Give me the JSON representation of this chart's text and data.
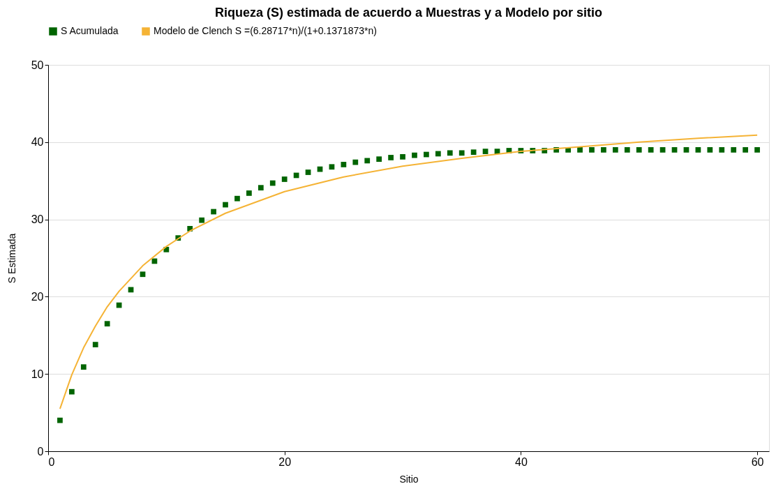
{
  "chart_data": {
    "type": "scatter",
    "title": "Riqueza (S) estimada de acuerdo a Muestras y a Modelo por sitio",
    "xlabel": "Sitio",
    "ylabel": "S Estimada",
    "xlim": [
      0,
      61
    ],
    "xticks": [
      0,
      20,
      40,
      60
    ],
    "ylim": [
      0,
      50
    ],
    "yticks": [
      0,
      10,
      20,
      30,
      40,
      50
    ],
    "grid": "y",
    "legend": "top left",
    "series": [
      {
        "name": "S Acumulada",
        "marker": "square",
        "color": "#006400",
        "x": [
          1,
          2,
          3,
          4,
          5,
          6,
          7,
          8,
          9,
          10,
          11,
          12,
          13,
          14,
          15,
          16,
          17,
          18,
          19,
          20,
          21,
          22,
          23,
          24,
          25,
          26,
          27,
          28,
          29,
          30,
          31,
          32,
          33,
          34,
          35,
          36,
          37,
          38,
          39,
          40,
          41,
          42,
          43,
          44,
          45,
          46,
          47,
          48,
          49,
          50,
          51,
          52,
          53,
          54,
          55,
          56,
          57,
          58,
          59,
          60
        ],
        "values": [
          4,
          7.7,
          10.9,
          13.8,
          16.5,
          18.9,
          20.9,
          22.9,
          24.6,
          26.1,
          27.6,
          28.8,
          29.9,
          31,
          31.9,
          32.7,
          33.4,
          34.1,
          34.7,
          35.2,
          35.7,
          36.1,
          36.5,
          36.8,
          37.1,
          37.4,
          37.6,
          37.8,
          38,
          38.1,
          38.3,
          38.4,
          38.5,
          38.6,
          38.6,
          38.7,
          38.8,
          38.8,
          38.9,
          38.9,
          38.9,
          38.9,
          39,
          39,
          39,
          39,
          39,
          39,
          39,
          39,
          39,
          39,
          39,
          39,
          39,
          39,
          39,
          39,
          39,
          39
        ]
      },
      {
        "name": "Modelo de Clench S =(6.28717*n)/(1+0.1371873*n)",
        "type": "line",
        "line_style": "solid",
        "color": "#f5b335",
        "x": [
          1,
          2,
          3,
          4,
          5,
          6,
          8,
          10,
          12,
          15,
          20,
          25,
          30,
          35,
          40,
          45,
          50,
          55,
          60
        ],
        "values": [
          5.5,
          9.9,
          13.4,
          16.2,
          18.7,
          20.7,
          24,
          26.5,
          28.5,
          30.8,
          33.6,
          35.5,
          36.9,
          37.9,
          38.8,
          39.4,
          40,
          40.5,
          40.9
        ]
      }
    ]
  }
}
